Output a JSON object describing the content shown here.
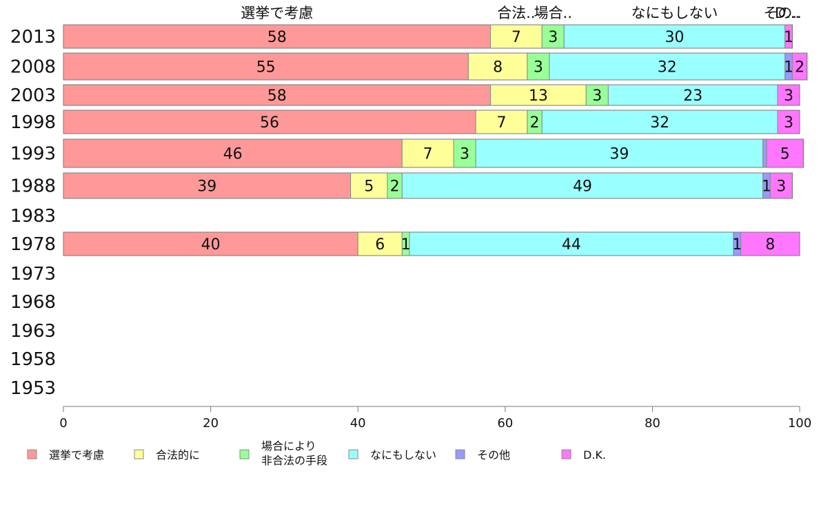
{
  "chart_data": {
    "type": "bar",
    "orientation": "horizontal",
    "stacked": true,
    "categories": [
      "2013",
      "2008",
      "2003",
      "1998",
      "1993",
      "1988",
      "1983",
      "1978",
      "1973",
      "1968",
      "1963",
      "1958",
      "1953"
    ],
    "series": [
      {
        "name": "選挙で考慮",
        "color": "#ff9999",
        "values": [
          58,
          55,
          58,
          56,
          46,
          39,
          null,
          40,
          null,
          null,
          null,
          null,
          null
        ]
      },
      {
        "name": "合法的に",
        "color": "#ffff99",
        "values": [
          7,
          8,
          13,
          7,
          7,
          5,
          null,
          6,
          null,
          null,
          null,
          null,
          null
        ]
      },
      {
        "name": "場合により\n非合法の手段",
        "color": "#99ff99",
        "values": [
          3,
          3,
          3,
          2,
          3,
          2,
          null,
          1,
          null,
          null,
          null,
          null,
          null
        ]
      },
      {
        "name": "なにもしない",
        "color": "#99ffff",
        "values": [
          30,
          32,
          23,
          32,
          39,
          49,
          null,
          44,
          null,
          null,
          null,
          null,
          null
        ]
      },
      {
        "name": "その他",
        "color": "#9999ff",
        "values": [
          0,
          1,
          0,
          0,
          0.5,
          1,
          null,
          1,
          null,
          null,
          null,
          null,
          null
        ]
      },
      {
        "name": "D.K.",
        "color": "#ff77ff",
        "values": [
          1,
          2,
          3,
          3,
          5,
          3,
          null,
          8,
          null,
          null,
          null,
          null,
          null
        ]
      }
    ],
    "segment_labels": [
      [
        "58",
        "7",
        "3",
        "30",
        "",
        "1"
      ],
      [
        "55",
        "8",
        "3",
        "32",
        "1",
        "2"
      ],
      [
        "58",
        "13",
        "3",
        "23",
        "",
        "3"
      ],
      [
        "56",
        "7",
        "2",
        "32",
        "",
        "3"
      ],
      [
        "46",
        "7",
        "3",
        "39",
        "",
        "5"
      ],
      [
        "39",
        "5",
        "2",
        "49",
        "1",
        "3"
      ],
      [],
      [
        "40",
        "6",
        "1",
        "44",
        "1",
        "8"
      ],
      [],
      [],
      [],
      [],
      []
    ],
    "top_labels": [
      "選挙で考慮",
      "合法..",
      "場合..",
      "なにもしない",
      "その..",
      "D..."
    ],
    "xticks": [
      "0",
      "20",
      "40",
      "60",
      "80",
      "100"
    ],
    "xlim": [
      0,
      100
    ],
    "grid": false,
    "legend_position": "bottom"
  }
}
